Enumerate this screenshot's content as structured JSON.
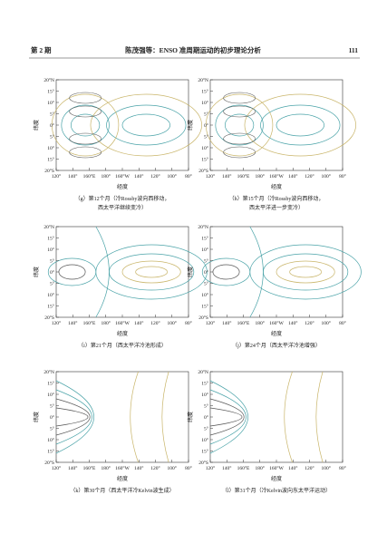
{
  "header": {
    "issue": "第 2 期",
    "title": "陈茂强等：ENSO 准周期运动的初步理论分析",
    "page": "111"
  },
  "axes": {
    "yticks": [
      "20°N",
      "15°",
      "10°",
      "5°",
      "0°",
      "5°",
      "10°",
      "15°",
      "20°S"
    ],
    "xticks": [
      "120°",
      "140°",
      "160°E",
      "180°",
      "160°W",
      "140°",
      "120°",
      "100°",
      "80°"
    ],
    "ylabel": "纬度",
    "xlabel": "经度"
  },
  "panels": [
    {
      "caption": [
        "（g）第12个月（冷Rossby波向西移动，",
        "西太平洋继续变冷）"
      ]
    },
    {
      "caption": [
        "（h）第15个月（冷Rossby波向西移动，",
        "西太平洋进一步变冷）"
      ]
    },
    {
      "caption": [
        "（i）第21个月（西太平洋冷池形成）"
      ]
    },
    {
      "caption": [
        "（j）第24个月（西太平洋冷池增强）"
      ]
    },
    {
      "caption": [
        "（k）第30个月（西太平洋冷Kelvin波生成）"
      ]
    },
    {
      "caption": [
        "（l）第31个月（冷Kelvin波向东太平洋运动）"
      ]
    }
  ]
}
